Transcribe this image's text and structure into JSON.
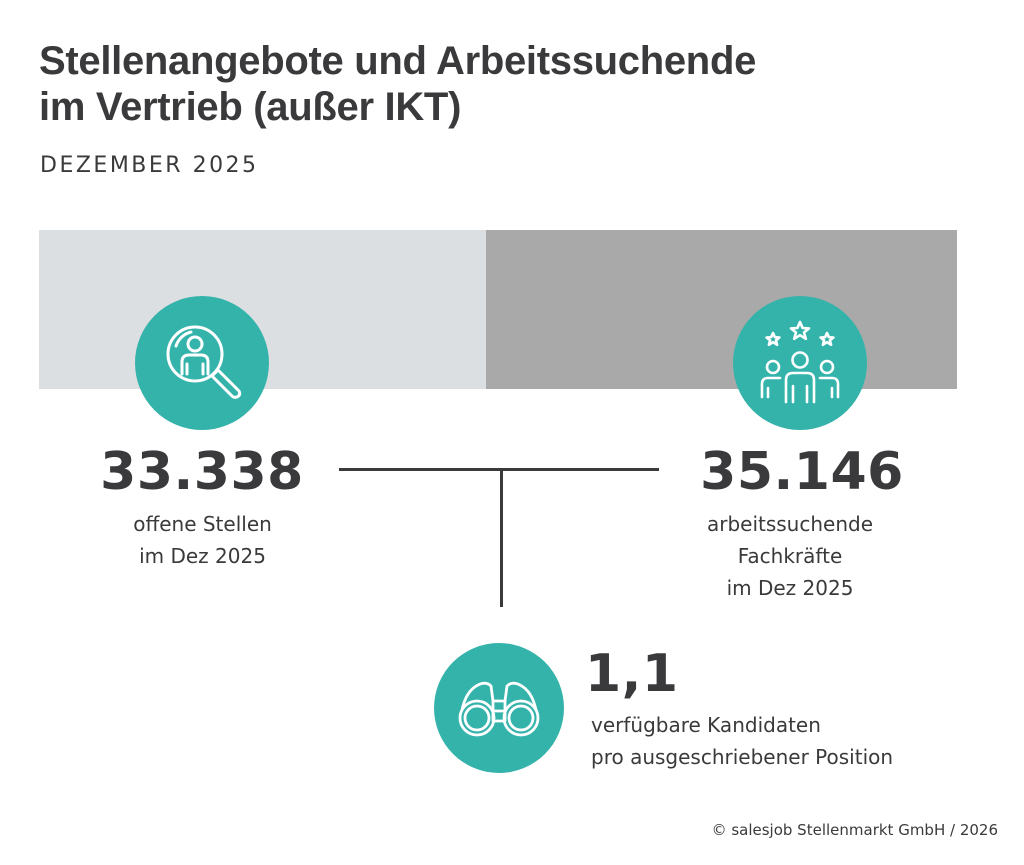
{
  "header": {
    "title_line1": "Stellenangebote und Arbeitssuchende",
    "title_line2": "im Vertrieb (außer IKT)",
    "subtitle": "DEZEMBER 2025"
  },
  "colors": {
    "accent": "#34b3ab",
    "bar_left": "#dcdfe2",
    "bar_right": "#a9a9a9",
    "text": "#3a3a3c",
    "connector": "#3a3a3c"
  },
  "chart_data": {
    "type": "bar",
    "title": "Stellenangebote und Arbeitssuchende im Vertrieb (außer IKT)",
    "subtitle": "DEZEMBER 2025",
    "categories": [
      "offene Stellen im Dez 2025",
      "arbeitssuchende Fachkräfte im Dez 2025"
    ],
    "values": [
      33338,
      35146
    ],
    "ratio": 1.1,
    "xlabel": "",
    "ylabel": ""
  },
  "stats": {
    "open_jobs": {
      "value": "33.338",
      "label_line1": "offene Stellen",
      "label_line2": "im Dez 2025",
      "icon": "search-person-icon"
    },
    "job_seekers": {
      "value": "35.146",
      "label_line1": "arbeitssuchende",
      "label_line2": "Fachkräfte",
      "label_line3": "im Dez 2025",
      "icon": "team-stars-icon"
    },
    "ratio": {
      "value": "1,1",
      "label_line1": "verfügbare Kandidaten",
      "label_line2": "pro ausgeschriebener Position",
      "icon": "binoculars-icon"
    }
  },
  "footer": {
    "copyright": "© salesjob Stellenmarkt GmbH / 2026"
  }
}
